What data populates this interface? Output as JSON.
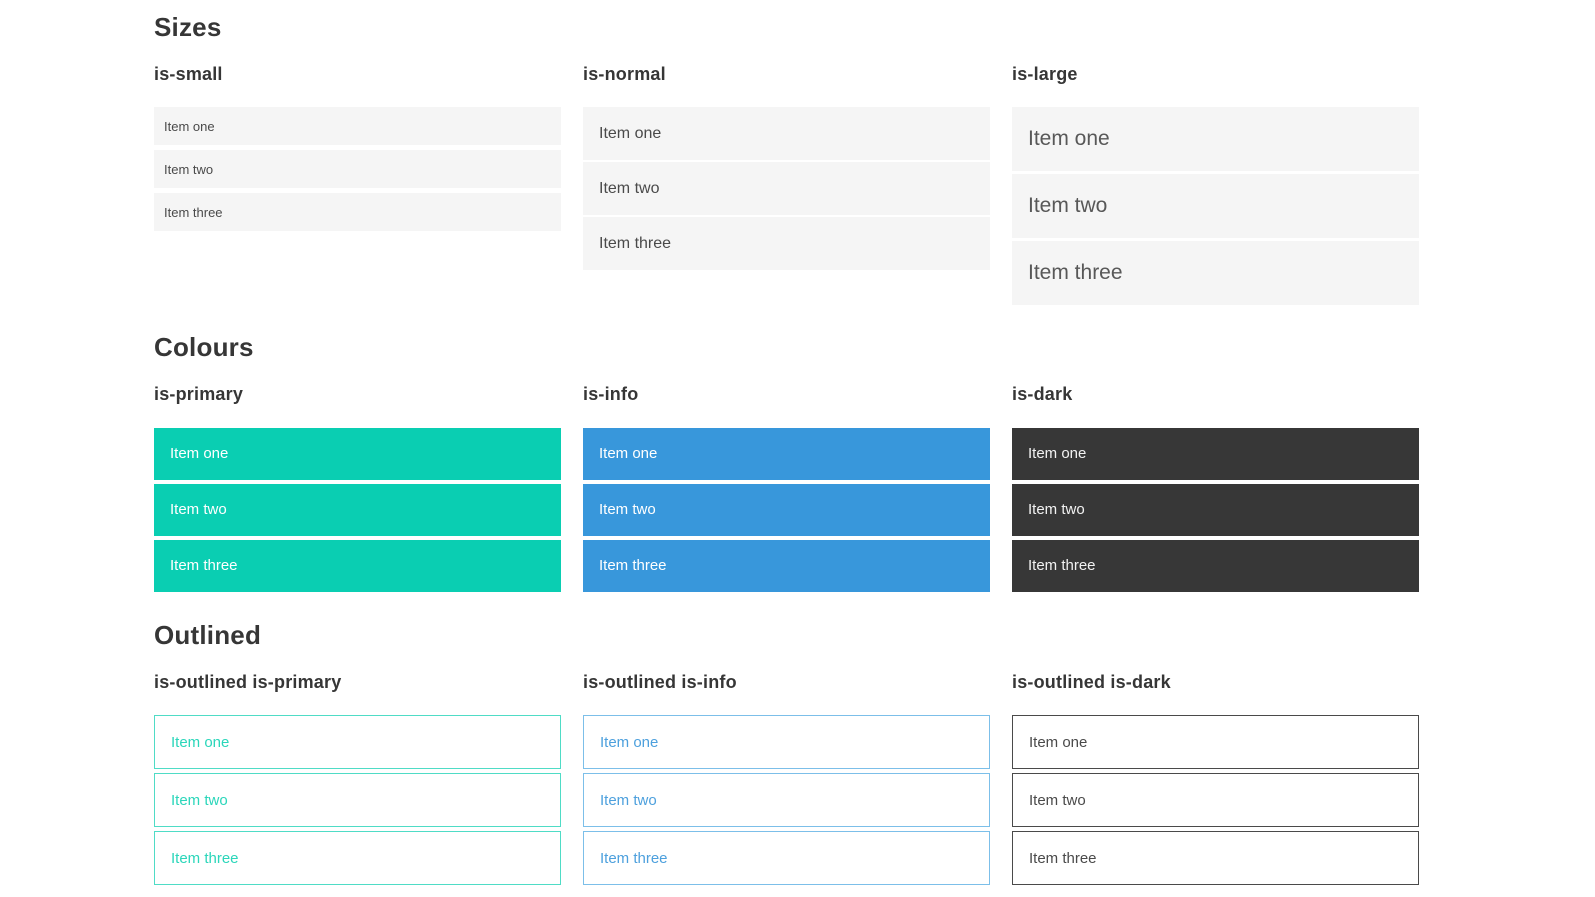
{
  "sections": [
    {
      "title": "Sizes",
      "groups": [
        {
          "label": "is-small",
          "variant": "size-small",
          "items": [
            "Item one",
            "Item two",
            "Item three"
          ]
        },
        {
          "label": "is-normal",
          "variant": "size-normal",
          "items": [
            "Item one",
            "Item two",
            "Item three"
          ]
        },
        {
          "label": "is-large",
          "variant": "size-large",
          "items": [
            "Item one",
            "Item two",
            "Item three"
          ]
        }
      ]
    },
    {
      "title": "Colours",
      "groups": [
        {
          "label": "is-primary",
          "variant": "color-primary",
          "items": [
            "Item one",
            "Item two",
            "Item three"
          ]
        },
        {
          "label": "is-info",
          "variant": "color-info",
          "items": [
            "Item one",
            "Item two",
            "Item three"
          ]
        },
        {
          "label": "is-dark",
          "variant": "color-dark",
          "items": [
            "Item one",
            "Item two",
            "Item three"
          ]
        }
      ]
    },
    {
      "title": "Outlined",
      "groups": [
        {
          "label": "is-outlined is-primary",
          "variant": "outlined-primary",
          "items": [
            "Item one",
            "Item two",
            "Item three"
          ]
        },
        {
          "label": "is-outlined is-info",
          "variant": "outlined-info",
          "items": [
            "Item one",
            "Item two",
            "Item three"
          ]
        },
        {
          "label": "is-outlined is-dark",
          "variant": "outlined-dark",
          "items": [
            "Item one",
            "Item two",
            "Item three"
          ]
        }
      ]
    }
  ],
  "colors": {
    "heading": "#363636",
    "item-bg": "#f5f5f5",
    "item-text": "#4a4a4a",
    "primary": "#0aceb2",
    "info": "#3897db",
    "dark": "#373737",
    "primary-outline-border": "#4fdcc6",
    "primary-outline-text": "#2bd6ba",
    "info-outline-border": "#7cbfe9",
    "info-outline-text": "#4da0dd",
    "dark-outline-border": "#4a4a4a",
    "dark-outline-text": "#4a4a4a"
  }
}
